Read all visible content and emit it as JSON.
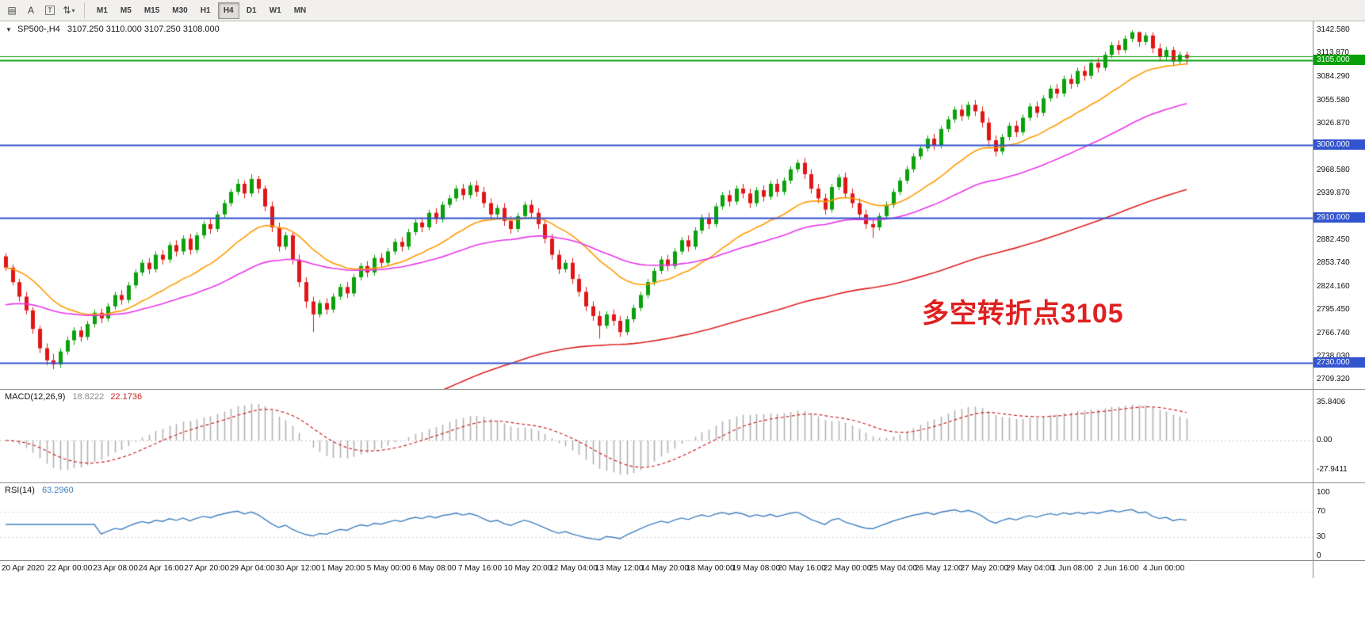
{
  "colors": {
    "candle_up": "#0aa10a",
    "candle_down": "#e01616",
    "macd_histogram": "#b2b2b2",
    "macd_signal": "#cc2222",
    "rsi_line": "#4080c0",
    "level_blue": "#3354cf",
    "level_green": "#089f08"
  },
  "toolbar": {
    "tools": [
      {
        "name": "chart-mode-tool",
        "glyph": "▤"
      },
      {
        "name": "insert-text-tool",
        "glyph": "A"
      },
      {
        "name": "insert-label-tool",
        "glyph": "T",
        "boxed": true
      },
      {
        "name": "cursor-style-tool",
        "glyph": "⇅",
        "caret": "▾"
      }
    ],
    "timeframes": [
      "M1",
      "M5",
      "M15",
      "M30",
      "H1",
      "H4",
      "D1",
      "W1",
      "MN"
    ],
    "active_timeframe": "H4"
  },
  "main_header": {
    "collapse": "▼",
    "symbol": "SP500-,H4",
    "ohlc": "3107.250 3110.000 3107.250 3108.000"
  },
  "annotation": {
    "text": "多空转折点3105"
  },
  "price_axis_labels": [
    "3142.580",
    "3113.870",
    "3084.290",
    "3055.580",
    "3026.870",
    "2968.580",
    "2939.870",
    "2882.450",
    "2853.740",
    "2824.160",
    "2795.450",
    "2766.740",
    "2738.030",
    "2709.320"
  ],
  "indicators": {
    "macd": {
      "label": "MACD(12,26,9)",
      "value_main": "18.8222",
      "value_signal": "22.1736",
      "axis_labels": [
        "35.8406",
        "0.00",
        "-27.9411"
      ]
    },
    "rsi": {
      "label": "RSI(14)",
      "value": "63.2960",
      "axis_labels": [
        "100",
        "70",
        "30",
        "0"
      ]
    }
  },
  "chart_data": {
    "type": "candlestick",
    "title": "SP500-,H4",
    "symbol": "SP500-",
    "timeframe": "H4",
    "current_bar": {
      "open": 3107.25,
      "high": 3110.0,
      "low": 3107.25,
      "close": 3108.0
    },
    "ylim": [
      2709.32,
      3142.58
    ],
    "x_labels": [
      "20 Apr 2020",
      "22 Apr 00:00",
      "23 Apr 08:00",
      "24 Apr 16:00",
      "27 Apr 20:00",
      "29 Apr 04:00",
      "30 Apr 12:00",
      "1 May 20:00",
      "5 May 00:00",
      "6 May 08:00",
      "7 May 16:00",
      "10 May 20:00",
      "12 May 04:00",
      "13 May 12:00",
      "14 May 20:00",
      "18 May 00:00",
      "19 May 08:00",
      "20 May 16:00",
      "22 May 00:00",
      "25 May 04:00",
      "26 May 12:00",
      "27 May 20:00",
      "29 May 04:00",
      "1 Jun 08:00",
      "2 Jun 16:00",
      "4 Jun 00:00"
    ],
    "candles": [
      [
        2862,
        2866,
        2844,
        2848
      ],
      [
        2848,
        2852,
        2826,
        2830
      ],
      [
        2830,
        2834,
        2806,
        2812
      ],
      [
        2812,
        2818,
        2790,
        2795
      ],
      [
        2795,
        2799,
        2766,
        2772
      ],
      [
        2772,
        2776,
        2742,
        2748
      ],
      [
        2748,
        2754,
        2727,
        2733
      ],
      [
        2733,
        2741,
        2722,
        2728
      ],
      [
        2728,
        2748,
        2724,
        2744
      ],
      [
        2744,
        2762,
        2740,
        2758
      ],
      [
        2758,
        2774,
        2752,
        2770
      ],
      [
        2770,
        2775,
        2756,
        2762
      ],
      [
        2762,
        2782,
        2758,
        2778
      ],
      [
        2778,
        2796,
        2774,
        2792
      ],
      [
        2792,
        2797,
        2779,
        2785
      ],
      [
        2785,
        2804,
        2781,
        2800
      ],
      [
        2800,
        2818,
        2796,
        2814
      ],
      [
        2814,
        2820,
        2802,
        2808
      ],
      [
        2808,
        2830,
        2804,
        2826
      ],
      [
        2826,
        2846,
        2822,
        2842
      ],
      [
        2842,
        2858,
        2838,
        2854
      ],
      [
        2854,
        2860,
        2840,
        2846
      ],
      [
        2846,
        2868,
        2842,
        2864
      ],
      [
        2864,
        2870,
        2852,
        2858
      ],
      [
        2858,
        2880,
        2854,
        2876
      ],
      [
        2876,
        2882,
        2862,
        2868
      ],
      [
        2868,
        2888,
        2864,
        2884
      ],
      [
        2884,
        2890,
        2864,
        2870
      ],
      [
        2870,
        2892,
        2866,
        2888
      ],
      [
        2888,
        2906,
        2884,
        2902
      ],
      [
        2902,
        2908,
        2890,
        2896
      ],
      [
        2896,
        2918,
        2892,
        2914
      ],
      [
        2914,
        2932,
        2910,
        2928
      ],
      [
        2928,
        2946,
        2924,
        2942
      ],
      [
        2942,
        2958,
        2938,
        2952
      ],
      [
        2952,
        2956,
        2934,
        2940
      ],
      [
        2940,
        2964,
        2936,
        2958
      ],
      [
        2958,
        2962,
        2940,
        2946
      ],
      [
        2946,
        2950,
        2918,
        2924
      ],
      [
        2924,
        2930,
        2892,
        2898
      ],
      [
        2898,
        2904,
        2868,
        2874
      ],
      [
        2874,
        2892,
        2870,
        2888
      ],
      [
        2888,
        2892,
        2852,
        2858
      ],
      [
        2858,
        2864,
        2824,
        2830
      ],
      [
        2830,
        2836,
        2798,
        2806
      ],
      [
        2806,
        2812,
        2768,
        2790
      ],
      [
        2790,
        2808,
        2786,
        2804
      ],
      [
        2804,
        2810,
        2790,
        2796
      ],
      [
        2796,
        2816,
        2792,
        2812
      ],
      [
        2812,
        2828,
        2808,
        2824
      ],
      [
        2824,
        2830,
        2810,
        2816
      ],
      [
        2816,
        2840,
        2812,
        2836
      ],
      [
        2836,
        2854,
        2832,
        2850
      ],
      [
        2850,
        2856,
        2836,
        2842
      ],
      [
        2842,
        2864,
        2838,
        2860
      ],
      [
        2860,
        2866,
        2848,
        2854
      ],
      [
        2854,
        2872,
        2850,
        2868
      ],
      [
        2868,
        2884,
        2864,
        2880
      ],
      [
        2880,
        2886,
        2868,
        2874
      ],
      [
        2874,
        2896,
        2870,
        2892
      ],
      [
        2892,
        2908,
        2888,
        2904
      ],
      [
        2904,
        2910,
        2892,
        2898
      ],
      [
        2898,
        2920,
        2894,
        2916
      ],
      [
        2916,
        2922,
        2902,
        2908
      ],
      [
        2908,
        2930,
        2904,
        2926
      ],
      [
        2926,
        2938,
        2922,
        2934
      ],
      [
        2934,
        2950,
        2930,
        2946
      ],
      [
        2946,
        2952,
        2932,
        2938
      ],
      [
        2938,
        2954,
        2934,
        2950
      ],
      [
        2950,
        2956,
        2936,
        2942
      ],
      [
        2942,
        2948,
        2922,
        2928
      ],
      [
        2928,
        2934,
        2908,
        2914
      ],
      [
        2914,
        2926,
        2910,
        2922
      ],
      [
        2922,
        2928,
        2900,
        2906
      ],
      [
        2906,
        2912,
        2890,
        2896
      ],
      [
        2896,
        2916,
        2892,
        2912
      ],
      [
        2912,
        2930,
        2908,
        2926
      ],
      [
        2926,
        2932,
        2910,
        2916
      ],
      [
        2916,
        2922,
        2896,
        2902
      ],
      [
        2902,
        2908,
        2878,
        2884
      ],
      [
        2884,
        2890,
        2858,
        2864
      ],
      [
        2864,
        2870,
        2840,
        2846
      ],
      [
        2846,
        2858,
        2842,
        2854
      ],
      [
        2854,
        2860,
        2828,
        2834
      ],
      [
        2834,
        2840,
        2812,
        2818
      ],
      [
        2818,
        2824,
        2794,
        2800
      ],
      [
        2800,
        2806,
        2782,
        2788
      ],
      [
        2788,
        2794,
        2760,
        2776
      ],
      [
        2776,
        2794,
        2772,
        2790
      ],
      [
        2790,
        2796,
        2776,
        2782
      ],
      [
        2782,
        2788,
        2762,
        2768
      ],
      [
        2768,
        2788,
        2764,
        2784
      ],
      [
        2784,
        2802,
        2780,
        2798
      ],
      [
        2798,
        2818,
        2794,
        2814
      ],
      [
        2814,
        2834,
        2810,
        2830
      ],
      [
        2830,
        2848,
        2826,
        2844
      ],
      [
        2844,
        2862,
        2840,
        2858
      ],
      [
        2858,
        2864,
        2844,
        2850
      ],
      [
        2850,
        2872,
        2846,
        2868
      ],
      [
        2868,
        2886,
        2864,
        2882
      ],
      [
        2882,
        2888,
        2868,
        2874
      ],
      [
        2874,
        2898,
        2870,
        2894
      ],
      [
        2894,
        2914,
        2890,
        2910
      ],
      [
        2910,
        2916,
        2896,
        2902
      ],
      [
        2902,
        2928,
        2898,
        2924
      ],
      [
        2924,
        2942,
        2920,
        2938
      ],
      [
        2938,
        2944,
        2924,
        2930
      ],
      [
        2930,
        2950,
        2926,
        2946
      ],
      [
        2946,
        2952,
        2934,
        2940
      ],
      [
        2940,
        2946,
        2922,
        2928
      ],
      [
        2928,
        2948,
        2924,
        2944
      ],
      [
        2944,
        2950,
        2930,
        2936
      ],
      [
        2936,
        2956,
        2932,
        2952
      ],
      [
        2952,
        2958,
        2936,
        2942
      ],
      [
        2942,
        2960,
        2938,
        2956
      ],
      [
        2956,
        2974,
        2952,
        2970
      ],
      [
        2970,
        2982,
        2966,
        2978
      ],
      [
        2978,
        2984,
        2958,
        2964
      ],
      [
        2964,
        2970,
        2940,
        2946
      ],
      [
        2946,
        2952,
        2928,
        2934
      ],
      [
        2934,
        2940,
        2914,
        2920
      ],
      [
        2920,
        2952,
        2916,
        2948
      ],
      [
        2948,
        2964,
        2944,
        2960
      ],
      [
        2960,
        2966,
        2934,
        2940
      ],
      [
        2940,
        2946,
        2922,
        2928
      ],
      [
        2928,
        2934,
        2908,
        2914
      ],
      [
        2914,
        2920,
        2896,
        2902
      ],
      [
        2902,
        2908,
        2885,
        2898
      ],
      [
        2898,
        2916,
        2894,
        2912
      ],
      [
        2912,
        2930,
        2908,
        2926
      ],
      [
        2926,
        2946,
        2922,
        2942
      ],
      [
        2942,
        2960,
        2938,
        2956
      ],
      [
        2956,
        2974,
        2952,
        2970
      ],
      [
        2970,
        2990,
        2966,
        2986
      ],
      [
        2986,
        3000,
        2982,
        2996
      ],
      [
        2996,
        3012,
        2992,
        3008
      ],
      [
        3008,
        3014,
        2994,
        3000
      ],
      [
        3000,
        3024,
        2996,
        3020
      ],
      [
        3020,
        3036,
        3016,
        3032
      ],
      [
        3032,
        3048,
        3028,
        3044
      ],
      [
        3044,
        3050,
        3030,
        3036
      ],
      [
        3036,
        3054,
        3032,
        3050
      ],
      [
        3050,
        3056,
        3036,
        3042
      ],
      [
        3042,
        3048,
        3022,
        3028
      ],
      [
        3028,
        3034,
        3000,
        3006
      ],
      [
        3006,
        3012,
        2986,
        2992
      ],
      [
        2992,
        3014,
        2988,
        3010
      ],
      [
        3010,
        3028,
        3006,
        3024
      ],
      [
        3024,
        3030,
        3010,
        3016
      ],
      [
        3016,
        3038,
        3012,
        3034
      ],
      [
        3034,
        3052,
        3030,
        3048
      ],
      [
        3048,
        3054,
        3034,
        3040
      ],
      [
        3040,
        3062,
        3036,
        3058
      ],
      [
        3058,
        3074,
        3054,
        3070
      ],
      [
        3070,
        3076,
        3058,
        3064
      ],
      [
        3064,
        3086,
        3060,
        3082
      ],
      [
        3082,
        3088,
        3070,
        3076
      ],
      [
        3076,
        3096,
        3072,
        3092
      ],
      [
        3092,
        3098,
        3080,
        3086
      ],
      [
        3086,
        3106,
        3082,
        3102
      ],
      [
        3102,
        3108,
        3090,
        3096
      ],
      [
        3096,
        3116,
        3092,
        3112
      ],
      [
        3112,
        3128,
        3108,
        3124
      ],
      [
        3124,
        3130,
        3112,
        3118
      ],
      [
        3118,
        3136,
        3114,
        3132
      ],
      [
        3132,
        3142.58,
        3128,
        3140
      ],
      [
        3140,
        3141,
        3122,
        3128
      ],
      [
        3128,
        3140,
        3124,
        3136
      ],
      [
        3136,
        3140,
        3114,
        3120
      ],
      [
        3120,
        3126,
        3104,
        3110
      ],
      [
        3110,
        3122,
        3106,
        3118
      ],
      [
        3118,
        3122,
        3098,
        3104
      ],
      [
        3104,
        3116,
        3100,
        3112
      ],
      [
        3112,
        3116,
        3100,
        3108
      ]
    ],
    "overlays": {
      "moving_averages": [
        {
          "name": "ma-fast",
          "period": 20,
          "color": "#ff9b00",
          "seed": null
        },
        {
          "name": "ma-mid",
          "period": 50,
          "color": "#e936e9",
          "seed": 2800
        },
        {
          "name": "ma-slow",
          "period": 130,
          "color": "#de2020",
          "seed": 2420
        }
      ],
      "horizontal_levels": [
        {
          "price": 3105.0,
          "color": "#089f08",
          "width": 2,
          "label": "3105.000"
        },
        {
          "price": 3110.0,
          "color": "#089f08",
          "width": 1,
          "label": ""
        },
        {
          "price": 3000.0,
          "color": "#3354cf",
          "width": 2,
          "label": "3000.000"
        },
        {
          "price": 2910.0,
          "color": "#3354cf",
          "width": 2,
          "label": "2910.000"
        },
        {
          "price": 2730.0,
          "color": "#3354cf",
          "width": 2,
          "label": "2730.000"
        }
      ]
    },
    "sub_charts": [
      {
        "type": "bar",
        "name": "MACD(12,26,9)",
        "derived_from": "candles",
        "params": [
          12,
          26,
          9
        ],
        "current_values": [
          18.8222,
          22.1736
        ],
        "ylim": [
          -27.9411,
          35.8406
        ],
        "zero_line": 0.0
      },
      {
        "type": "line",
        "name": "RSI(14)",
        "derived_from": "candles",
        "period": 14,
        "current_value": 63.296,
        "ylim": [
          0,
          100
        ],
        "levels": [
          30,
          70
        ]
      }
    ]
  }
}
